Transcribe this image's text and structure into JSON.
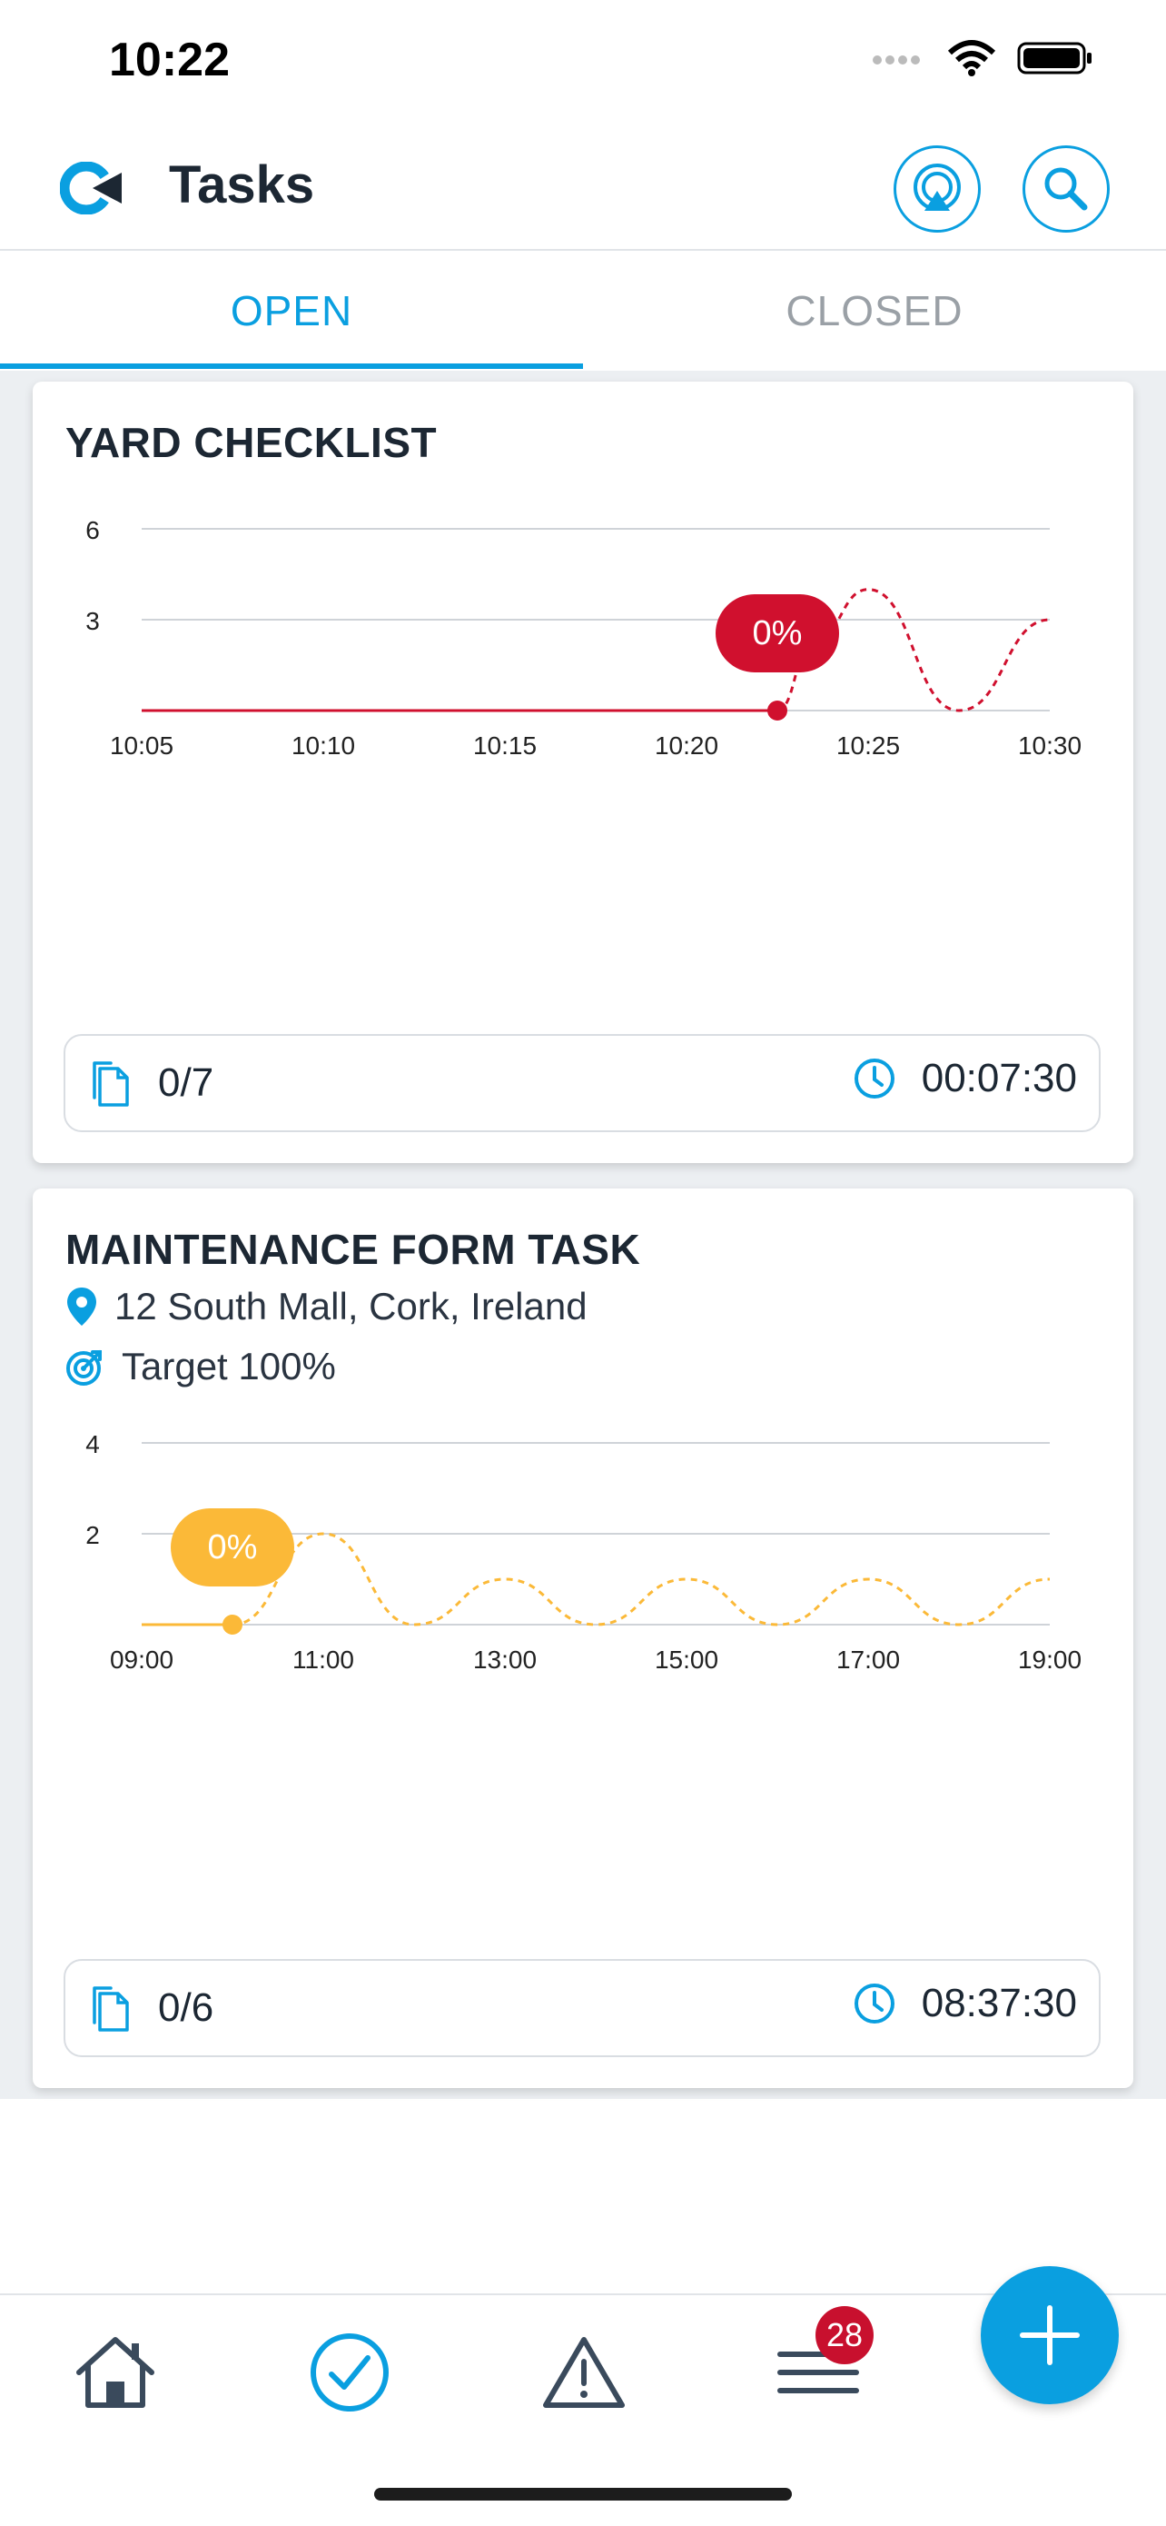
{
  "status_bar": {
    "time": "10:22"
  },
  "header": {
    "title": "Tasks",
    "accent_color": "#0a9fe0"
  },
  "tabs": [
    {
      "label": "OPEN",
      "active": true
    },
    {
      "label": "CLOSED",
      "active": false
    }
  ],
  "cards": [
    {
      "title": "YARD CHECKLIST",
      "count": "0/7",
      "duration": "00:07:30"
    },
    {
      "title": "MAINTENANCE FORM TASK",
      "location": "12 South Mall, Cork, Ireland",
      "target": "Target 100%",
      "count": "0/6",
      "duration": "08:37:30"
    }
  ],
  "chart_data": [
    {
      "type": "line",
      "x_ticks": [
        "10:05",
        "10:10",
        "10:15",
        "10:20",
        "10:25",
        "10:30"
      ],
      "y_ticks": [
        "6",
        "3"
      ],
      "ylim": [
        0,
        6
      ],
      "color": "#d0102e",
      "series": [
        {
          "style": "solid",
          "x": [
            "10:05",
            "10:22.5"
          ],
          "y": [
            0,
            0
          ]
        },
        {
          "style": "dashed",
          "x": [
            "10:22.5",
            "10:23.5",
            "10:25",
            "10:27.5",
            "10:30"
          ],
          "y": [
            0,
            2.3,
            4,
            0,
            3
          ]
        }
      ],
      "marker": {
        "x": "10:22.5",
        "y": 0,
        "label": "0%"
      }
    },
    {
      "type": "line",
      "x_ticks": [
        "09:00",
        "11:00",
        "13:00",
        "15:00",
        "17:00",
        "19:00"
      ],
      "y_ticks": [
        "4",
        "2"
      ],
      "ylim": [
        0,
        4
      ],
      "color": "#fbb938",
      "series": [
        {
          "style": "solid",
          "x": [
            "09:00",
            "10:00"
          ],
          "y": [
            0,
            0
          ]
        },
        {
          "style": "dashed",
          "x": [
            "10:00",
            "11:00",
            "12:00",
            "13:00",
            "14:00",
            "15:00",
            "16:00",
            "17:00",
            "18:00",
            "19:00"
          ],
          "y": [
            0,
            2,
            0,
            1,
            0,
            1,
            0,
            1,
            0,
            1
          ]
        }
      ],
      "marker": {
        "x": "10:00",
        "y": 0,
        "label": "0%"
      }
    }
  ],
  "bottom_nav": {
    "items": [
      "home-icon",
      "tasks-check-icon",
      "alert-triangle-icon",
      "menu-icon"
    ],
    "badge_count": "28"
  }
}
